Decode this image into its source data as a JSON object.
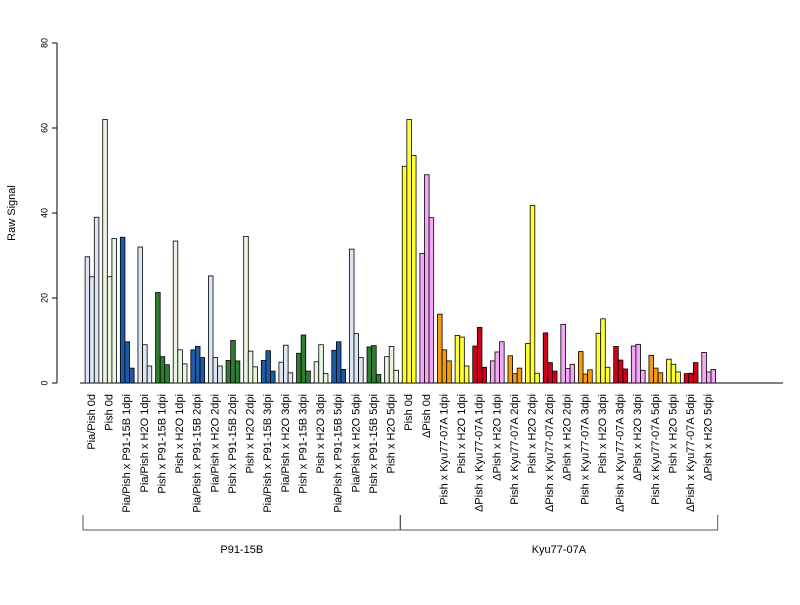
{
  "chart_data": {
    "type": "bar",
    "ylabel": "Raw Signal",
    "ylim": [
      0,
      80
    ],
    "yticks": [
      0,
      20,
      40,
      60,
      80
    ],
    "grid": false,
    "legend": "none",
    "palette": {
      "light_blue": "#dce6f2",
      "dark_blue": "#1f5aa6",
      "dark_green": "#2e7d32",
      "pale_green": "#e8f5e1",
      "yellow": "#ffff33",
      "pink": "#f4a7f4",
      "orange": "#f39c12",
      "red": "#d0021b"
    },
    "categories": [
      {
        "label": "Pia/Pish 0d",
        "color": "light_blue",
        "values": [
          29.7,
          25,
          39
        ]
      },
      {
        "label": "Pish 0d",
        "color": "pale_green",
        "values": [
          62,
          25,
          34
        ]
      },
      {
        "label": "Pia/Pish x P91-15B 1dpi",
        "color": "dark_blue",
        "values": [
          34.3,
          9.7,
          3.5
        ]
      },
      {
        "label": "Pia/Pish x H2O 1dpi",
        "color": "light_blue",
        "values": [
          32,
          9,
          4
        ]
      },
      {
        "label": "Pish x P91-15B 1dpi",
        "color": "dark_green",
        "values": [
          21.3,
          6.2,
          4.3
        ]
      },
      {
        "label": "Pish x H2O 1dpi",
        "color": "pale_green",
        "values": [
          33.4,
          7.8,
          4.5
        ]
      },
      {
        "label": "Pia/Pish x P91-15B 2dpi",
        "color": "dark_blue",
        "values": [
          7.8,
          8.6,
          6
        ]
      },
      {
        "label": "Pia/Pish x H2O 2dpi",
        "color": "light_blue",
        "values": [
          25.2,
          6,
          4
        ]
      },
      {
        "label": "Pish x P91-15B 2dpi",
        "color": "dark_green",
        "values": [
          5.3,
          10,
          5.2
        ]
      },
      {
        "label": "Pish x H2O 2dpi",
        "color": "pale_green",
        "values": [
          34.5,
          7.5,
          3.8
        ]
      },
      {
        "label": "Pia/Pish x P91-15B 3dpi",
        "color": "dark_blue",
        "values": [
          5.3,
          7.6,
          2.8
        ]
      },
      {
        "label": "Pia/Pish x H2O 3dpi",
        "color": "light_blue",
        "values": [
          4.9,
          8.9,
          2.4
        ]
      },
      {
        "label": "Pish x P91-15B 3dpi",
        "color": "dark_green",
        "values": [
          7,
          11.3,
          2.8
        ]
      },
      {
        "label": "Pish x H2O 3dpi",
        "color": "pale_green",
        "values": [
          5,
          9,
          2.2
        ]
      },
      {
        "label": "Pia/Pish x P91-15B 5dpi",
        "color": "dark_blue",
        "values": [
          7.7,
          9.7,
          3.2
        ]
      },
      {
        "label": "Pia/Pish x H2O 5dpi",
        "color": "light_blue",
        "values": [
          31.5,
          11.6,
          6
        ]
      },
      {
        "label": "Pish x P91-15B 5dpi",
        "color": "dark_green",
        "values": [
          8.5,
          8.8,
          2
        ]
      },
      {
        "label": "Pish x H2O 5dpi",
        "color": "pale_green",
        "values": [
          6.2,
          8.6,
          3
        ]
      },
      {
        "label": "Pish 0d",
        "color": "yellow",
        "values": [
          51,
          62,
          53.5
        ]
      },
      {
        "label": "ΔPish 0d",
        "color": "pink",
        "values": [
          30.5,
          49,
          38.9
        ]
      },
      {
        "label": "Pish x Kyu77-07A 1dpi",
        "color": "orange",
        "values": [
          16.2,
          7.8,
          5.2
        ]
      },
      {
        "label": "Pish x H2O 1dpi",
        "color": "yellow",
        "values": [
          11.2,
          10.8,
          4
        ]
      },
      {
        "label": "ΔPish x Kyu77-07A 1dpi",
        "color": "red",
        "values": [
          8.7,
          13.1,
          3.7
        ]
      },
      {
        "label": "ΔPish x H2O 1dpi",
        "color": "pink",
        "values": [
          5.2,
          7.3,
          9.7
        ]
      },
      {
        "label": "Pish x Kyu77-07A 2dpi",
        "color": "orange",
        "values": [
          6.4,
          2.2,
          3.5
        ]
      },
      {
        "label": "Pish x H2O 2dpi",
        "color": "yellow",
        "values": [
          9.3,
          41.8,
          2.3
        ]
      },
      {
        "label": "ΔPish x Kyu77-07A 2dpi",
        "color": "red",
        "values": [
          11.8,
          4.8,
          2.8
        ]
      },
      {
        "label": "ΔPish x H2O 2dpi",
        "color": "pink",
        "values": [
          13.8,
          3.4,
          4.4
        ]
      },
      {
        "label": "Pish x Kyu77-07A 3dpi",
        "color": "orange",
        "values": [
          7.4,
          2.1,
          3.1
        ]
      },
      {
        "label": "Pish x H2O 3dpi",
        "color": "yellow",
        "values": [
          11.7,
          15.1,
          3.7
        ]
      },
      {
        "label": "ΔPish x Kyu77-07A 3dpi",
        "color": "red",
        "values": [
          8.6,
          5.4,
          3.3
        ]
      },
      {
        "label": "ΔPish x H2O 3dpi",
        "color": "pink",
        "values": [
          8.7,
          9.1,
          3
        ]
      },
      {
        "label": "Pish x Kyu77-07A 5dpi",
        "color": "orange",
        "values": [
          6.5,
          3.5,
          2.4
        ]
      },
      {
        "label": "Pish x H2O 5dpi",
        "color": "yellow",
        "values": [
          5.6,
          4.4,
          2.6
        ]
      },
      {
        "label": "ΔPish x Kyu77-07A 5dpi",
        "color": "red",
        "values": [
          2.2,
          2.3,
          4.8
        ]
      },
      {
        "label": "ΔPish x H2O 5dpi",
        "color": "pink",
        "values": [
          7.2,
          2.6,
          3.2
        ]
      }
    ],
    "groups": [
      {
        "label": "P91-15B",
        "from": 0,
        "to": 17
      },
      {
        "label": "Kyu77-07A",
        "from": 18,
        "to": 35
      }
    ]
  }
}
